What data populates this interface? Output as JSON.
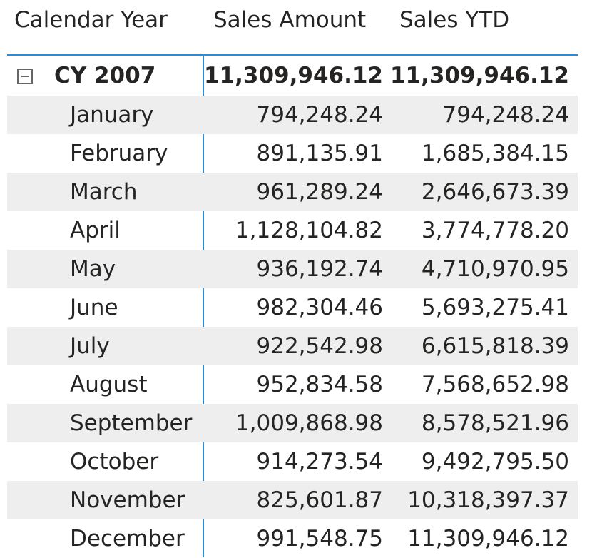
{
  "header": {
    "col_year": "Calendar Year",
    "col_sales": "Sales Amount",
    "col_ytd": "Sales YTD"
  },
  "total": {
    "label": "CY 2007",
    "sales": "11,309,946.12",
    "ytd": "11,309,946.12"
  },
  "rows": [
    {
      "month": "January",
      "sales": "794,248.24",
      "ytd": "794,248.24"
    },
    {
      "month": "February",
      "sales": "891,135.91",
      "ytd": "1,685,384.15"
    },
    {
      "month": "March",
      "sales": "961,289.24",
      "ytd": "2,646,673.39"
    },
    {
      "month": "April",
      "sales": "1,128,104.82",
      "ytd": "3,774,778.20"
    },
    {
      "month": "May",
      "sales": "936,192.74",
      "ytd": "4,710,970.95"
    },
    {
      "month": "June",
      "sales": "982,304.46",
      "ytd": "5,693,275.41"
    },
    {
      "month": "July",
      "sales": "922,542.98",
      "ytd": "6,615,818.39"
    },
    {
      "month": "August",
      "sales": "952,834.58",
      "ytd": "7,568,652.98"
    },
    {
      "month": "September",
      "sales": "1,009,868.98",
      "ytd": "8,578,521.96"
    },
    {
      "month": "October",
      "sales": "914,273.54",
      "ytd": "9,492,795.50"
    },
    {
      "month": "November",
      "sales": "825,601.87",
      "ytd": "10,318,397.37"
    },
    {
      "month": "December",
      "sales": "991,548.75",
      "ytd": "11,309,946.12"
    }
  ],
  "colors": {
    "accent": "#2a8dd4",
    "row_shade": "#eeeeee",
    "text": "#252423"
  },
  "icons": {
    "collapse": "minus-square-icon"
  }
}
